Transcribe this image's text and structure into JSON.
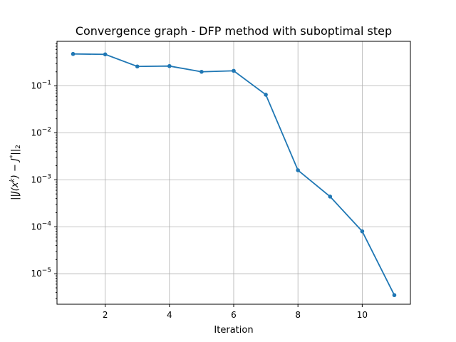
{
  "chart_data": {
    "type": "line",
    "title": "Convergence graph - DFP method with suboptimal step",
    "xlabel": "Iteration",
    "ylabel": "||J(x^k) − J*||_2",
    "yscale": "log",
    "xlim": [
      0.5,
      11.5
    ],
    "ylim_exp": [
      -5.65,
      -0.05
    ],
    "x_ticks": [
      2,
      4,
      6,
      8,
      10
    ],
    "x_tick_labels": [
      "2",
      "4",
      "6",
      "8",
      "10"
    ],
    "y_ticks_exp": [
      -5,
      -4,
      -3,
      -2,
      -1
    ],
    "grid": true,
    "series": [
      {
        "name": "DFP",
        "color": "#1f77b4",
        "x": [
          1,
          2,
          3,
          4,
          5,
          6,
          7,
          8,
          9,
          10,
          11
        ],
        "values": [
          0.48,
          0.47,
          0.26,
          0.265,
          0.2,
          0.21,
          0.065,
          0.0016,
          0.00044,
          8e-05,
          3.5e-06
        ]
      }
    ]
  }
}
